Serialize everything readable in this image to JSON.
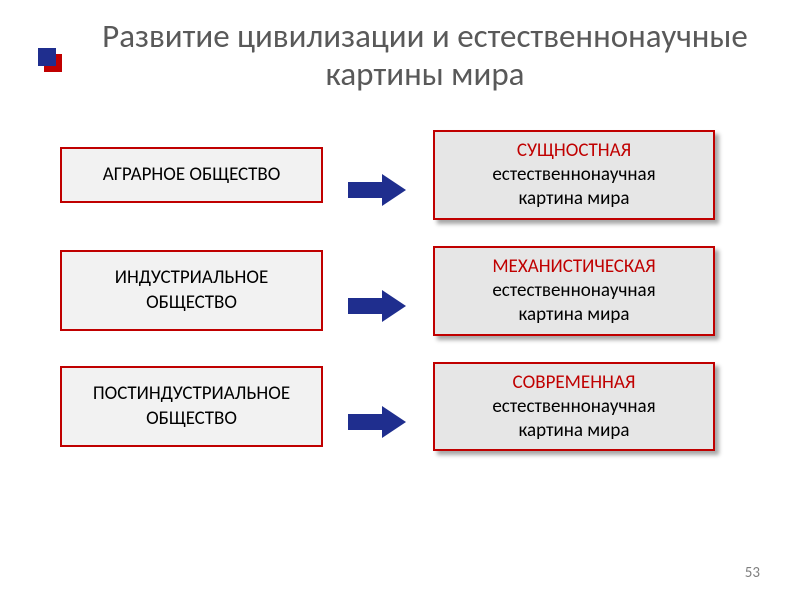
{
  "title": "Развитие цивилизации и естественнонаучные картины мира",
  "page_number": "53",
  "colors": {
    "title_text": "#595959",
    "box_border": "#c00000",
    "emphasis_text": "#c00000",
    "arrow_fill": "#1f2e8e",
    "left_box_bg": "#f2f2f2",
    "right_box_bg": "#e6e6e6",
    "bullet_primary": "#1f2e8e",
    "bullet_secondary": "#c00000"
  },
  "typography": {
    "title_fontsize_pt": 25,
    "box_fontsize_pt": 14,
    "font_family": "Calibri"
  },
  "rows": [
    {
      "left_lines": [
        "АГРАРНОЕ ОБЩЕСТВО"
      ],
      "right_emph": "СУЩНОСТНАЯ",
      "right_rest_lines": [
        "естественнонаучная",
        "картина мира"
      ]
    },
    {
      "left_lines": [
        "ИНДУСТРИАЛЬНОЕ",
        "ОБЩЕСТВО"
      ],
      "right_emph": "МЕХАНИСТИЧЕСКАЯ",
      "right_rest_lines": [
        "естественнонаучная",
        "картина мира"
      ]
    },
    {
      "left_lines": [
        "ПОСТИНДУСТРИАЛЬНОЕ",
        "ОБЩЕСТВО"
      ],
      "right_emph": "СОВРЕМЕННАЯ",
      "right_rest_lines": [
        "естественнонаучная",
        "картина мира"
      ]
    }
  ]
}
